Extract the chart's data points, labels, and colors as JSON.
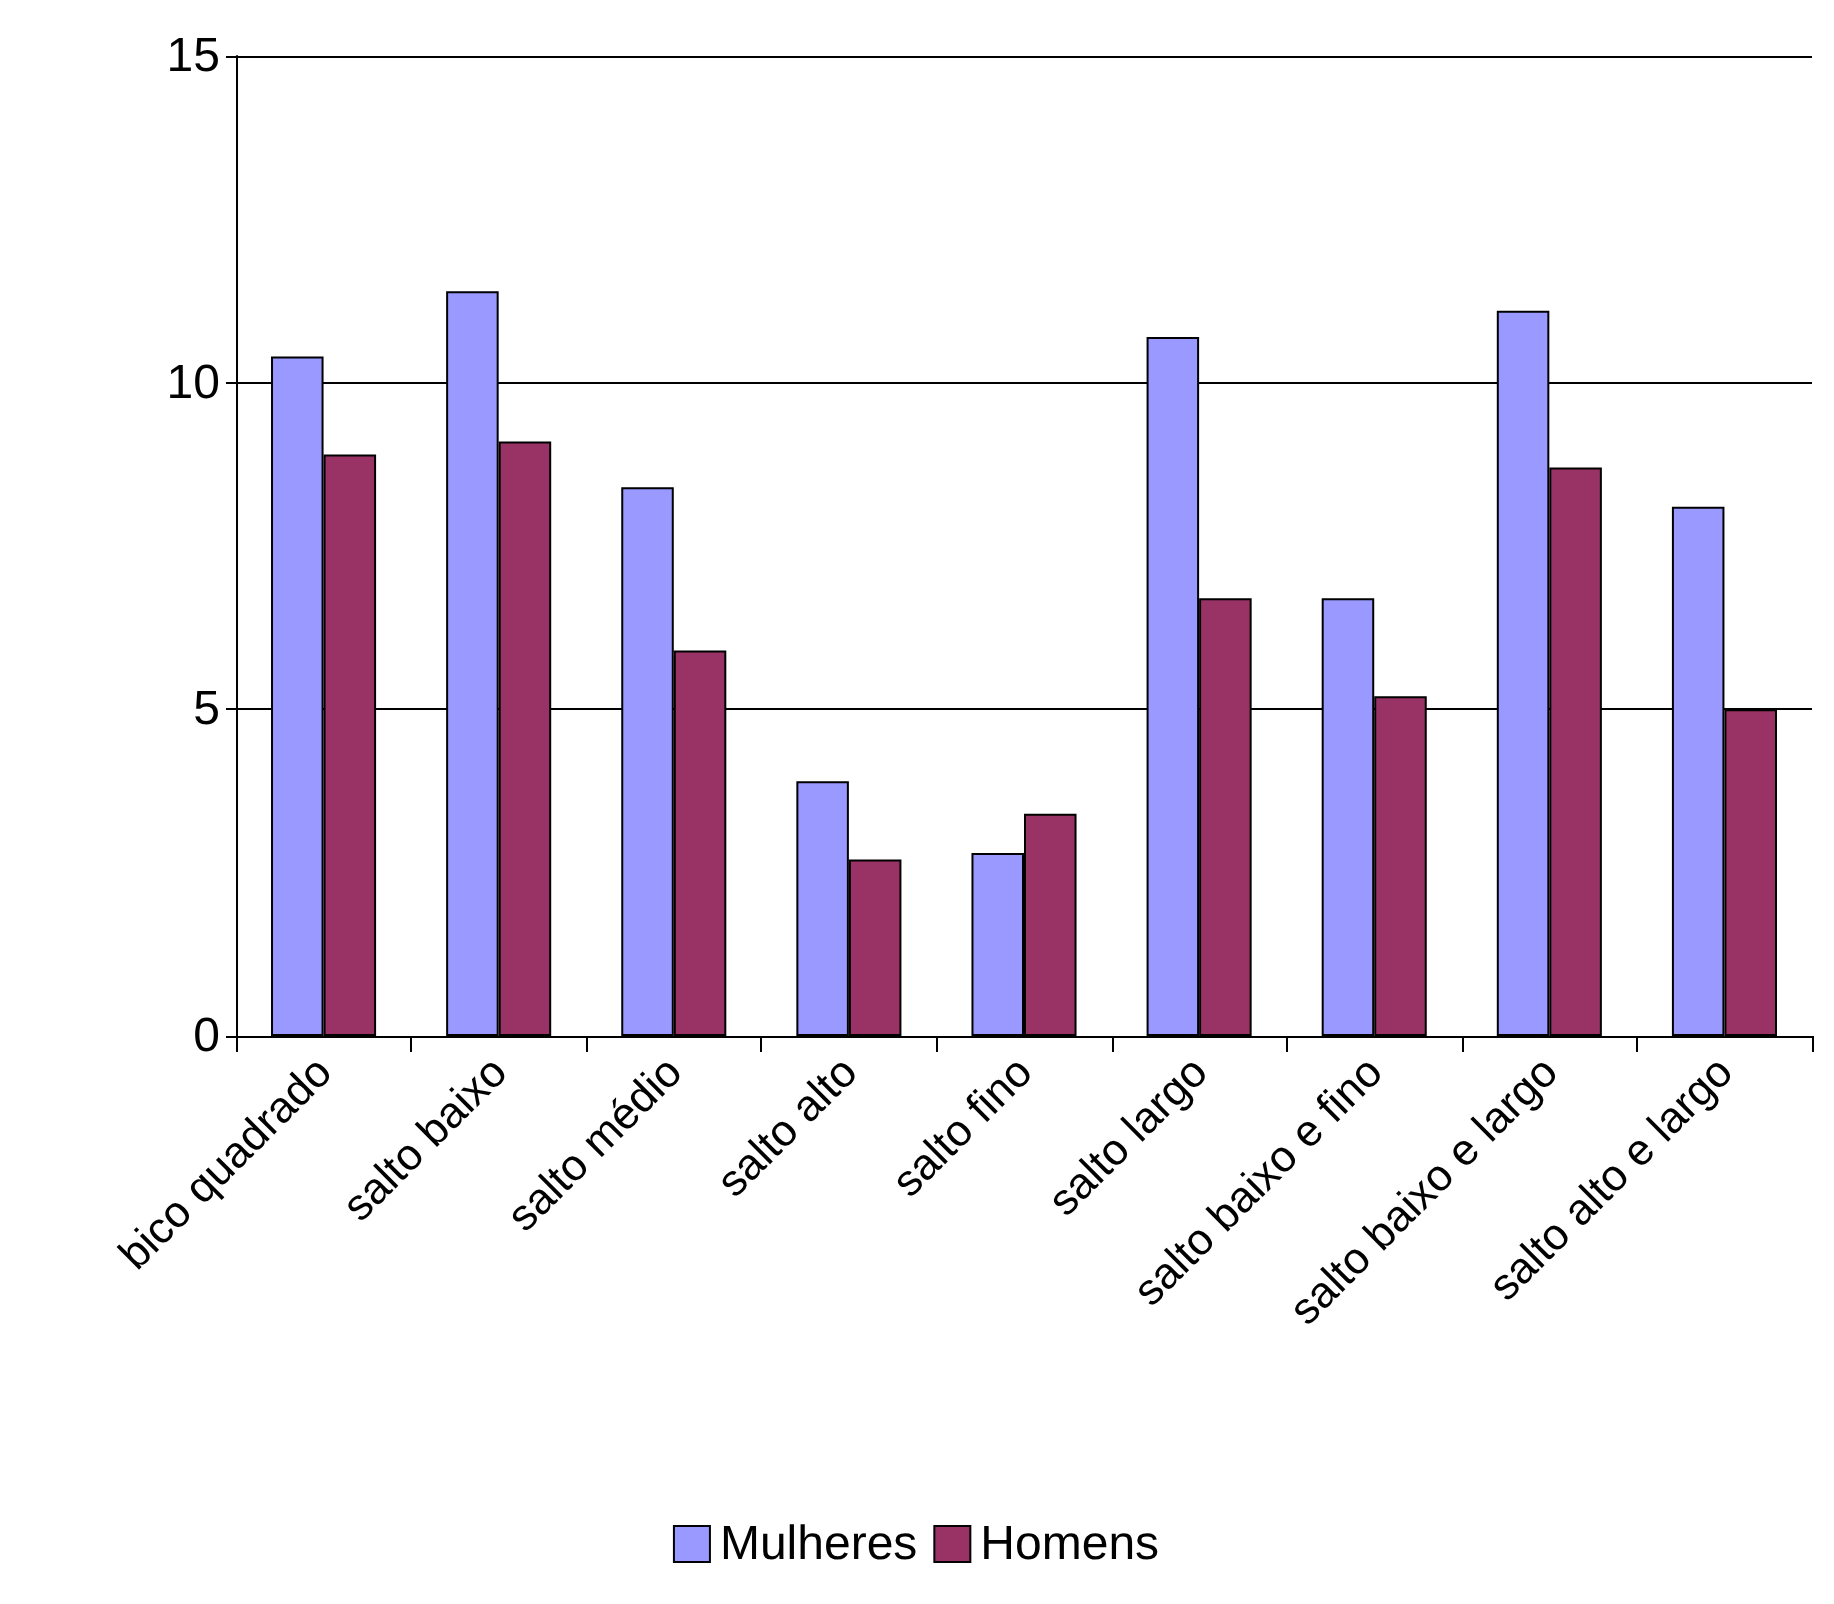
{
  "chart_data": {
    "type": "bar",
    "categories": [
      "bico quadrado",
      "salto baixo",
      "salto médio",
      "salto alto",
      "salto fino",
      "salto largo",
      "salto baixo e fino",
      "salto baixo e largo",
      "salto alto e largo"
    ],
    "series": [
      {
        "name": "Mulheres",
        "color": "#9999ff",
        "values": [
          10.4,
          11.4,
          8.4,
          3.9,
          2.8,
          10.7,
          6.7,
          11.1,
          8.1
        ]
      },
      {
        "name": "Homens",
        "color": "#993366",
        "values": [
          8.9,
          9.1,
          5.9,
          2.7,
          3.4,
          6.7,
          5.2,
          8.7,
          5.0
        ]
      }
    ],
    "ylim": [
      0,
      15
    ],
    "yticks": [
      0,
      5,
      10,
      15
    ],
    "grid": "y",
    "legend": "bottom"
  }
}
